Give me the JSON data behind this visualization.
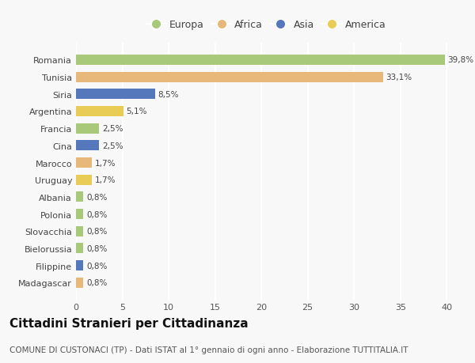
{
  "categories": [
    "Romania",
    "Tunisia",
    "Siria",
    "Argentina",
    "Francia",
    "Cina",
    "Marocco",
    "Uruguay",
    "Albania",
    "Polonia",
    "Slovacchia",
    "Bielorussia",
    "Filippine",
    "Madagascar"
  ],
  "values": [
    39.8,
    33.1,
    8.5,
    5.1,
    2.5,
    2.5,
    1.7,
    1.7,
    0.8,
    0.8,
    0.8,
    0.8,
    0.8,
    0.8
  ],
  "labels": [
    "39,8%",
    "33,1%",
    "8,5%",
    "5,1%",
    "2,5%",
    "2,5%",
    "1,7%",
    "1,7%",
    "0,8%",
    "0,8%",
    "0,8%",
    "0,8%",
    "0,8%",
    "0,8%"
  ],
  "continents": [
    "Europa",
    "Africa",
    "Asia",
    "America",
    "Europa",
    "Asia",
    "Africa",
    "America",
    "Europa",
    "Europa",
    "Europa",
    "Europa",
    "Asia",
    "Africa"
  ],
  "colors": {
    "Europa": "#a8c87a",
    "Africa": "#e8b87a",
    "Asia": "#5577bb",
    "America": "#e8cc55"
  },
  "xlim": [
    0,
    41
  ],
  "xticks": [
    0,
    5,
    10,
    15,
    20,
    25,
    30,
    35,
    40
  ],
  "title": "Cittadini Stranieri per Cittadinanza",
  "subtitle": "COMUNE DI CUSTONACI (TP) - Dati ISTAT al 1° gennaio di ogni anno - Elaborazione TUTTITALIA.IT",
  "bg_color": "#f8f8f8",
  "grid_color": "#ffffff",
  "bar_height": 0.6,
  "title_fontsize": 11,
  "subtitle_fontsize": 7.5,
  "label_fontsize": 7.5,
  "tick_fontsize": 8,
  "legend_fontsize": 9
}
